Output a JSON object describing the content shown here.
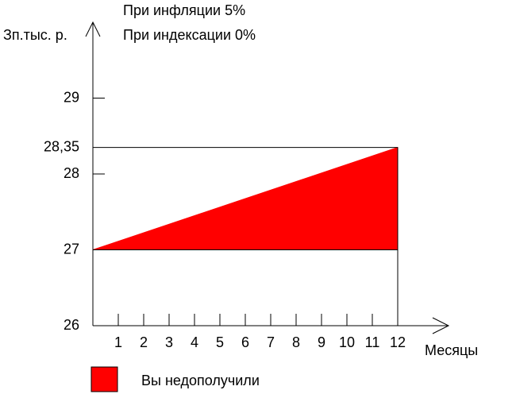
{
  "chart_data": {
    "type": "area",
    "title": [
      "При инфляции 5%",
      "При индексации 0%"
    ],
    "y_label": "Зп.тыс. р.",
    "x_label": "Месяцы",
    "x": [
      0,
      12
    ],
    "series": [
      {
        "name": "Вы недополучили",
        "color": "#ff0000",
        "values": [
          27,
          28.35
        ],
        "base": [
          27,
          27
        ]
      }
    ],
    "xlim": [
      0,
      14
    ],
    "xticks": [
      1,
      2,
      3,
      4,
      5,
      6,
      7,
      8,
      9,
      10,
      11,
      12
    ],
    "ylim": [
      26,
      30
    ],
    "yticks": [
      26,
      27,
      28,
      {
        "value": 28.35,
        "label": "28,35"
      },
      29
    ]
  }
}
